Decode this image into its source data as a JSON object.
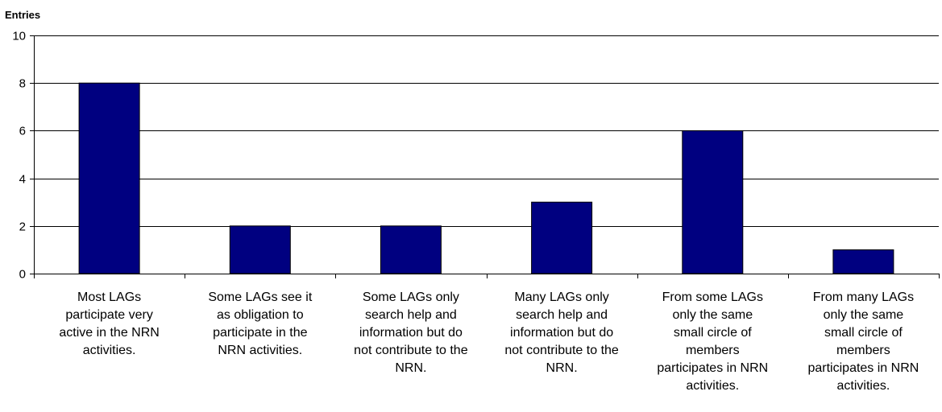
{
  "chart_data": {
    "type": "bar",
    "title": "",
    "xlabel": "",
    "ylabel": "Entries",
    "ylim": [
      0,
      10
    ],
    "yticks": [
      0,
      2,
      4,
      6,
      8,
      10
    ],
    "grid": true,
    "categories": [
      [
        "Most LAGs",
        "participate very",
        "active in the NRN",
        "activities."
      ],
      [
        "Some LAGs see it",
        "as obligation to",
        "participate in the",
        "NRN activities."
      ],
      [
        "Some LAGs only",
        "search help and",
        "information but do",
        "not contribute to the",
        "NRN."
      ],
      [
        "Many LAGs only",
        "search help and",
        "information but do",
        "not contribute to the",
        "NRN."
      ],
      [
        "From some LAGs",
        "only the same",
        "small circle of",
        "members",
        "participates in NRN",
        "activities."
      ],
      [
        "From many LAGs",
        "only the same",
        "small circle of",
        "members",
        "participates in NRN",
        "activities."
      ]
    ],
    "values": [
      8,
      2,
      2,
      3,
      6,
      1
    ],
    "colors": {
      "bar": "#000080",
      "bar_edge": "#000000",
      "grid": "#000000",
      "axis": "#000000"
    }
  }
}
